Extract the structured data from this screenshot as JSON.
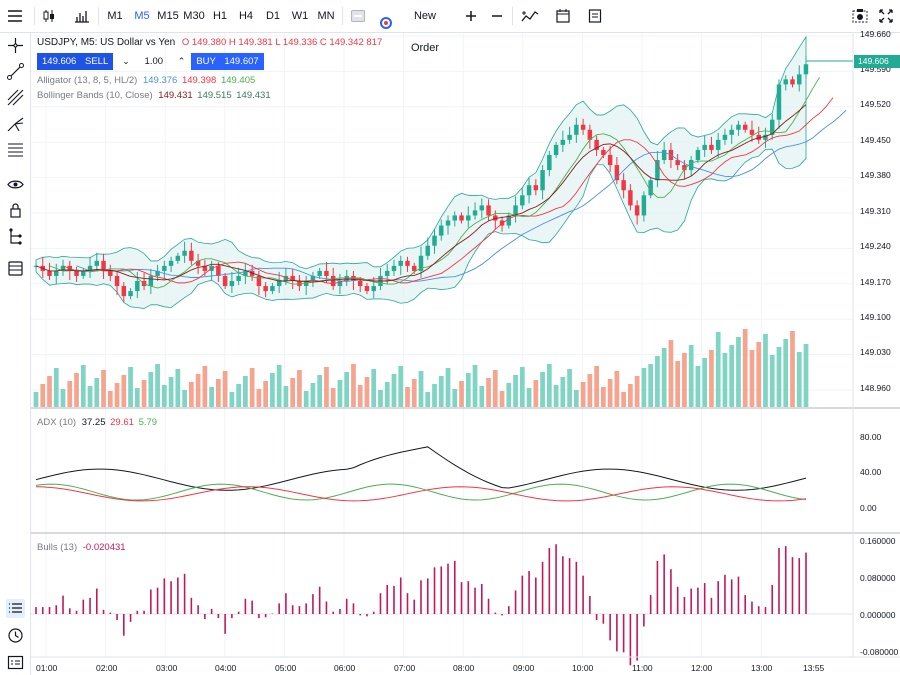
{
  "toolbar": {
    "timeframes": [
      "M1",
      "M5",
      "M15",
      "M30",
      "H1",
      "H4",
      "D1",
      "W1",
      "MN"
    ],
    "active_timeframe": "M5",
    "new_order_label": "New Order"
  },
  "legend": {
    "symbol": "USDJPY, M5: US Dollar vs Yen",
    "ohlc": "O 149.380 H 149.381 L 149.336 C 149.342 817",
    "sell_price": "149.606",
    "sell_label": "SELL",
    "quantity": "1.00",
    "buy_label": "BUY",
    "buy_price": "149.607",
    "alligator_label": "Alligator (13, 8, 5, HL/2)",
    "alligator_values": [
      "149.376",
      "149.398",
      "149.405"
    ],
    "bollinger_label": "Bollinger Bands (10, Close)",
    "bollinger_values": [
      "149.431",
      "149.515",
      "149.431"
    ]
  },
  "price_axis": [
    "149.660",
    "149.590",
    "149.520",
    "149.450",
    "149.380",
    "149.310",
    "149.240",
    "149.170",
    "149.100",
    "149.030",
    "148.960"
  ],
  "current_price": "149.606",
  "adx": {
    "label": "ADX (10)",
    "values": [
      "37.25",
      "29.61",
      "5.79"
    ],
    "axis": [
      "80.00",
      "40.00",
      "0.00"
    ]
  },
  "bulls": {
    "label": "Bulls (13)",
    "value": "-0.020431",
    "axis": [
      "0.160000",
      "0.080000",
      "0.000000",
      "-0.080000"
    ]
  },
  "time_axis": [
    "01:00",
    "02:00",
    "03:00",
    "04:00",
    "05:00",
    "06:00",
    "07:00",
    "08:00",
    "09:00",
    "10:00",
    "11:00",
    "12:00",
    "13:00",
    "13:55"
  ],
  "colors": {
    "up": "#22ab94",
    "down": "#f23645",
    "accent": "#2962ff",
    "bulls": "#c2185b",
    "adx_main": "#131722",
    "adx_plus": "#4caf50",
    "adx_minus": "#f23645",
    "bb_fill": "#e0f2f1"
  },
  "chart_data": {
    "type": "candlestick",
    "series_close": [
      149.21,
      149.2,
      149.19,
      149.2,
      149.21,
      149.2,
      149.19,
      149.2,
      149.21,
      149.22,
      149.2,
      149.19,
      149.17,
      149.15,
      149.16,
      149.18,
      149.17,
      149.19,
      149.2,
      149.21,
      149.22,
      149.23,
      149.24,
      149.22,
      149.21,
      149.2,
      149.21,
      149.19,
      149.17,
      149.18,
      149.19,
      149.2,
      149.19,
      149.17,
      149.16,
      149.17,
      149.18,
      149.19,
      149.18,
      149.17,
      149.18,
      149.19,
      149.2,
      149.19,
      149.17,
      149.18,
      149.19,
      149.18,
      149.17,
      149.16,
      149.17,
      149.19,
      149.2,
      149.21,
      149.22,
      149.21,
      149.2,
      149.23,
      149.25,
      149.27,
      149.29,
      149.3,
      149.31,
      149.3,
      149.31,
      149.32,
      149.33,
      149.31,
      149.3,
      149.29,
      149.31,
      149.33,
      149.35,
      149.37,
      149.36,
      149.4,
      149.43,
      149.45,
      149.46,
      149.47,
      149.49,
      149.48,
      149.46,
      149.44,
      149.43,
      149.41,
      149.38,
      149.36,
      149.33,
      149.31,
      149.35,
      149.38,
      149.42,
      149.44,
      149.42,
      149.41,
      149.4,
      149.42,
      149.44,
      149.45,
      149.44,
      149.46,
      149.47,
      149.48,
      149.49,
      149.48,
      149.47,
      149.46,
      149.47,
      149.5,
      149.57,
      149.58,
      149.57,
      149.59,
      149.61
    ]
  }
}
